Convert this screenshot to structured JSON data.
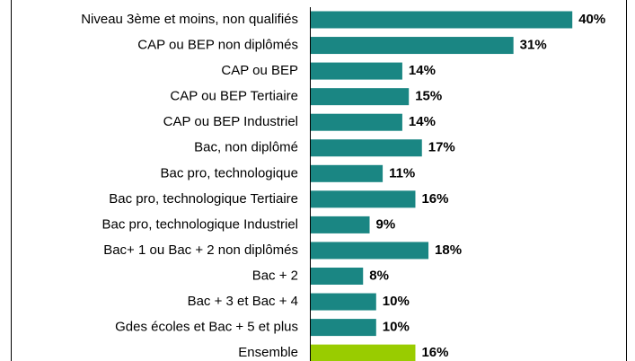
{
  "chart_data": {
    "type": "barh",
    "categories": [
      "Niveau 3ème et moins, non qualifiés",
      "CAP ou BEP non diplômés",
      "CAP ou BEP",
      "CAP ou BEP Tertiaire",
      "CAP ou BEP Industriel",
      "Bac, non diplômé",
      "Bac pro, technologique",
      "Bac pro, technologique Tertiaire",
      "Bac pro, technologique Industriel",
      "Bac+ 1 ou Bac + 2 non diplômés",
      "Bac + 2",
      "Bac + 3 et Bac + 4",
      "Gdes écoles et Bac + 5 et plus",
      "Ensemble"
    ],
    "values": [
      40,
      31,
      14,
      15,
      14,
      17,
      11,
      16,
      9,
      18,
      8,
      10,
      10,
      16
    ],
    "value_labels": [
      "40%",
      "31%",
      "14%",
      "15%",
      "14%",
      "17%",
      "11%",
      "16%",
      "9%",
      "18%",
      "8%",
      "10%",
      "10%",
      "16%"
    ],
    "colors": [
      "#1a8683",
      "#1a8683",
      "#1a8683",
      "#1a8683",
      "#1a8683",
      "#1a8683",
      "#1a8683",
      "#1a8683",
      "#1a8683",
      "#1a8683",
      "#1a8683",
      "#1a8683",
      "#1a8683",
      "#99cc00"
    ]
  }
}
